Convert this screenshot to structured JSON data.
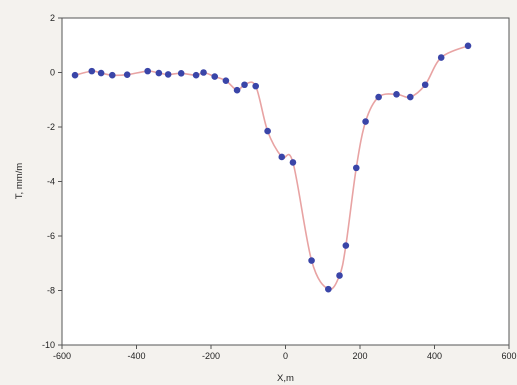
{
  "chart_data": {
    "type": "line",
    "xlabel": "X,m",
    "ylabel": "T, mm/m",
    "xlim": [
      -600,
      600
    ],
    "ylim": [
      -10,
      2
    ],
    "xticks": [
      "-600",
      "-400",
      "-200",
      "0",
      "200",
      "400",
      "600"
    ],
    "yticks": [
      "2",
      "0",
      "-2",
      "-4",
      "-6",
      "-8",
      "-10"
    ],
    "grid": false,
    "line_color": "#e8a3a3",
    "marker_color": "#3a45a8",
    "series": [
      {
        "x": [
          -565,
          -520,
          -495,
          -465,
          -425,
          -370,
          -340,
          -315,
          -280,
          -240,
          -220,
          -190,
          -160,
          -130,
          -110,
          -80,
          -48,
          -10,
          20,
          70,
          115,
          145,
          162,
          190,
          215,
          250,
          298,
          335,
          375,
          418,
          490
        ],
        "y": [
          -0.1,
          0.05,
          -0.02,
          -0.1,
          -0.08,
          0.05,
          -0.02,
          -0.07,
          -0.03,
          -0.1,
          0.0,
          -0.15,
          -0.3,
          -0.65,
          -0.45,
          -0.5,
          -2.15,
          -3.1,
          -3.3,
          -6.9,
          -7.95,
          -7.45,
          -6.35,
          -3.5,
          -1.8,
          -0.9,
          -0.8,
          -0.9,
          -0.45,
          0.55,
          0.98
        ]
      }
    ]
  }
}
